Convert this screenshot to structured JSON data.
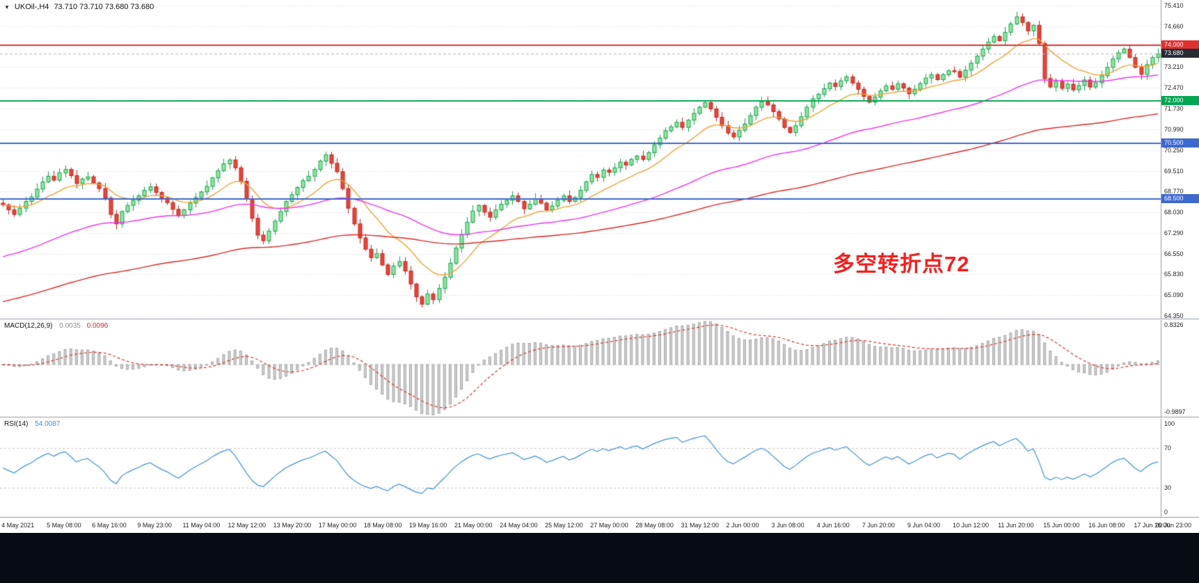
{
  "header": {
    "icon": "▼",
    "symbol": "UKOil-,H4",
    "ohlc": "73.710 73.710 73.680 73.680"
  },
  "style": {
    "bg": "#ffffff",
    "grid_color": "#d8d8e0",
    "panel_border": "#9aa0a8",
    "up_fill": "#90e6a0",
    "up_border": "#15a04a",
    "down_fill": "#e8453c",
    "down_border": "#bf261d",
    "axis_text": "#1c1c1c",
    "footer_color": "#070b12"
  },
  "chart_data": {
    "type": "candlestick",
    "symbol": "UKOil-",
    "timeframe": "H4",
    "ohlc_display": {
      "open": "73.710",
      "high": "73.710",
      "low": "73.680",
      "close": "73.680"
    },
    "price_axis": {
      "min": 64.22,
      "max": 75.6,
      "ticks": [
        "75.410",
        "74.660",
        "73.210",
        "72.470",
        "71.730",
        "70.990",
        "70.250",
        "69.510",
        "68.770",
        "68.030",
        "67.290",
        "66.550",
        "65.830",
        "65.090",
        "64.350"
      ]
    },
    "levels": [
      {
        "price": 74.0,
        "label": "74.000",
        "color": "#e03131"
      },
      {
        "price": 72.0,
        "label": "72.000",
        "color": "#00a651"
      },
      {
        "price": 70.5,
        "label": "70.500",
        "color": "#3d68cf"
      },
      {
        "price": 68.5,
        "label": "68.500",
        "color": "#3d68cf"
      }
    ],
    "current_price": {
      "value": 73.68,
      "label": "73.680",
      "badge_color": "#262b36",
      "line_color": "#b5b5b5"
    },
    "annotation": {
      "text": "多空转折点72",
      "color": "#f22020"
    },
    "moving_averages": [
      {
        "name": "ma-fast",
        "period": 13,
        "color": "#f0a030",
        "seed": null
      },
      {
        "name": "ma-mid",
        "period": 55,
        "color": "#ee30ee",
        "seed": 66.45
      },
      {
        "name": "ma-slow",
        "period": 130,
        "color": "#dd2222",
        "seed": 64.85
      }
    ],
    "closes": [
      68.3,
      68.12,
      67.96,
      68.18,
      68.42,
      68.58,
      68.86,
      69.12,
      69.32,
      69.18,
      69.44,
      69.56,
      69.34,
      69.06,
      69.22,
      69.3,
      69.08,
      68.88,
      68.54,
      67.96,
      67.62,
      68.06,
      68.28,
      68.46,
      68.62,
      68.82,
      68.94,
      68.74,
      68.54,
      68.38,
      68.14,
      67.92,
      68.12,
      68.36,
      68.56,
      68.76,
      68.96,
      69.26,
      69.52,
      69.76,
      69.9,
      69.62,
      69.14,
      68.52,
      67.82,
      67.22,
      67.02,
      67.36,
      67.72,
      68.06,
      68.42,
      68.66,
      68.92,
      69.16,
      69.32,
      69.56,
      69.86,
      70.08,
      69.78,
      69.48,
      68.88,
      68.18,
      67.62,
      67.12,
      66.72,
      66.42,
      66.56,
      66.16,
      65.82,
      66.12,
      66.28,
      65.94,
      65.48,
      65.02,
      64.76,
      65.12,
      64.92,
      65.32,
      65.72,
      66.22,
      66.76,
      67.24,
      67.68,
      68.08,
      68.28,
      68.04,
      67.86,
      68.12,
      68.32,
      68.46,
      68.62,
      68.42,
      68.16,
      68.32,
      68.52,
      68.36,
      68.12,
      68.26,
      68.46,
      68.62,
      68.42,
      68.56,
      68.82,
      69.12,
      69.38,
      69.28,
      69.54,
      69.46,
      69.62,
      69.82,
      69.72,
      69.92,
      70.04,
      69.92,
      70.16,
      70.44,
      70.68,
      70.94,
      71.08,
      71.24,
      71.06,
      71.32,
      71.56,
      71.78,
      71.94,
      71.72,
      71.42,
      71.12,
      70.86,
      70.72,
      70.96,
      71.18,
      71.48,
      71.78,
      71.98,
      71.86,
      71.62,
      71.36,
      71.06,
      70.88,
      71.12,
      71.44,
      71.78,
      72.08,
      72.24,
      72.44,
      72.64,
      72.52,
      72.72,
      72.86,
      72.64,
      72.42,
      72.16,
      71.96,
      72.14,
      72.36,
      72.54,
      72.42,
      72.62,
      72.46,
      72.26,
      72.42,
      72.62,
      72.82,
      72.94,
      72.76,
      72.94,
      73.08,
      73.05,
      72.85,
      73.1,
      73.35,
      73.6,
      73.85,
      74.1,
      74.3,
      74.15,
      74.45,
      74.75,
      75.0,
      74.8,
      74.5,
      74.7,
      74.05,
      72.8,
      72.5,
      72.7,
      72.45,
      72.6,
      72.4,
      72.55,
      72.75,
      72.5,
      72.65,
      72.9,
      73.2,
      73.5,
      73.72,
      73.85,
      73.55,
      73.2,
      72.95,
      73.3,
      73.55,
      73.68
    ],
    "time_axis": {
      "labels": [
        {
          "index": 0,
          "text": "4 May 2021"
        },
        {
          "index": 8,
          "text": "5 May 08:00"
        },
        {
          "index": 16,
          "text": "6 May 16:00"
        },
        {
          "index": 24,
          "text": "9 May 23:00"
        },
        {
          "index": 32,
          "text": "11 May 04:00"
        },
        {
          "index": 40,
          "text": "12 May 12:00"
        },
        {
          "index": 48,
          "text": "13 May 20:00"
        },
        {
          "index": 56,
          "text": "17 May 00:00"
        },
        {
          "index": 64,
          "text": "18 May 08:00"
        },
        {
          "index": 72,
          "text": "19 May 16:00"
        },
        {
          "index": 80,
          "text": "21 May 00:00"
        },
        {
          "index": 88,
          "text": "24 May 04:00"
        },
        {
          "index": 96,
          "text": "25 May 12:00"
        },
        {
          "index": 104,
          "text": "27 May 00:00"
        },
        {
          "index": 112,
          "text": "28 May 08:00"
        },
        {
          "index": 120,
          "text": "31 May 12:00"
        },
        {
          "index": 128,
          "text": "2 Jun 00:00"
        },
        {
          "index": 136,
          "text": "3 Jun 08:00"
        },
        {
          "index": 144,
          "text": "4 Jun 16:00"
        },
        {
          "index": 152,
          "text": "7 Jun 20:00"
        },
        {
          "index": 160,
          "text": "9 Jun 04:00"
        },
        {
          "index": 168,
          "text": "10 Jun 12:00"
        },
        {
          "index": 176,
          "text": "11 Jun 20:00"
        },
        {
          "index": 184,
          "text": "15 Jun 00:00"
        },
        {
          "index": 192,
          "text": "16 Jun 08:00"
        },
        {
          "index": 200,
          "text": "17 Jun 16:00"
        },
        {
          "index": 204,
          "text": "20 Jun 23:00"
        }
      ]
    },
    "indicators": {
      "macd": {
        "label": "MACD(12,26,9)",
        "value_main": "0.0035",
        "value_signal": "0.0096",
        "params": [
          12,
          26,
          9
        ],
        "axis_max": 0.8326,
        "axis_min": -0.9897,
        "axis_max_label": "0.8326",
        "axis_min_label": "-0.9897",
        "bar_color": "#cfcfcf",
        "bar_border": "#a5a5a5",
        "signal_color": "#d93030"
      },
      "rsi": {
        "label": "RSI(14)",
        "value": "54.0087",
        "period": 14,
        "axis_labels": [
          "100",
          "70",
          "30",
          "0"
        ],
        "levels": [
          70,
          30
        ],
        "axis_min": 0,
        "axis_max": 100,
        "line_color": "#3c8dde",
        "level_color": "#c8c8c8"
      }
    }
  }
}
